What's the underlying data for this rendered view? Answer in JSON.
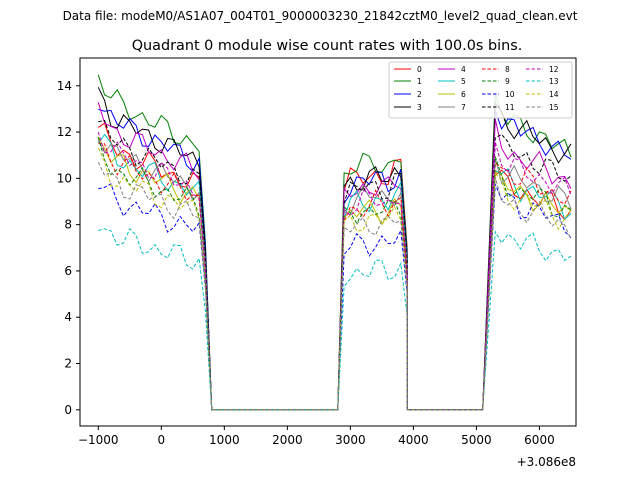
{
  "chart_data": {
    "type": "line",
    "suptitle": "Data file: modeM0/AS1A07_004T01_9000003230_21842cztM0_level2_quad_clean.evt",
    "title": "Quadrant 0 module wise count rates with 100.0s bins.",
    "xlabel": "",
    "ylabel": "",
    "x_offset_label": "+3.086e8",
    "xlim": [
      -1290,
      6580
    ],
    "ylim": [
      -0.7,
      15.2
    ],
    "xticks": [
      -1000,
      0,
      1000,
      2000,
      3000,
      4000,
      5000,
      6000
    ],
    "xtick_labels": [
      "−1000",
      "0",
      "1000",
      "2000",
      "3000",
      "4000",
      "5000",
      "6000"
    ],
    "yticks": [
      0,
      2,
      4,
      6,
      8,
      10,
      12,
      14
    ],
    "ytick_labels": [
      "0",
      "2",
      "4",
      "6",
      "8",
      "10",
      "12",
      "14"
    ],
    "legend": {
      "position": "upper-right",
      "ncol": 4
    },
    "segments": [
      {
        "x_start": -1000,
        "x_end": 600,
        "scale": [
          1.0,
          0.97,
          0.94,
          0.92,
          0.91,
          0.9,
          0.89,
          0.88,
          0.87,
          0.86,
          0.85,
          0.84,
          0.83,
          0.82,
          0.81,
          0.8,
          0.79
        ]
      },
      {
        "x_start": 2900,
        "x_end": 3800,
        "scale": [
          0.95,
          0.98,
          0.99,
          1.0,
          1.0,
          1.01,
          1.0,
          0.99,
          1.02,
          1.03
        ]
      },
      {
        "x_start": 5300,
        "x_end": 6500,
        "scale": [
          1.0,
          0.95,
          0.93,
          0.92,
          0.9,
          0.9,
          0.89,
          0.88,
          0.87,
          0.85,
          0.84,
          0.83,
          0.82
        ]
      }
    ],
    "zero_spans": [
      [
        800,
        2800
      ],
      [
        3900,
        5100
      ]
    ],
    "series": [
      {
        "name": "0",
        "color": "#ff0000",
        "dash": "solid",
        "levels": [
          12.2,
          10.1,
          10.4
        ]
      },
      {
        "name": "1",
        "color": "#008000",
        "dash": "solid",
        "levels": [
          14.4,
          10.6,
          13.5
        ]
      },
      {
        "name": "2",
        "color": "#0000ff",
        "dash": "solid",
        "levels": [
          13.5,
          9.9,
          13.3
        ]
      },
      {
        "name": "3",
        "color": "#000000",
        "dash": "solid",
        "levels": [
          13.6,
          10.0,
          13.3
        ]
      },
      {
        "name": "4",
        "color": "#c000c0",
        "dash": "solid",
        "levels": [
          13.0,
          9.6,
          12.0
        ]
      },
      {
        "name": "5",
        "color": "#00bfbf",
        "dash": "solid",
        "levels": [
          11.8,
          9.0,
          10.6
        ]
      },
      {
        "name": "6",
        "color": "#bfbf00",
        "dash": "solid",
        "levels": [
          11.6,
          8.6,
          10.3
        ]
      },
      {
        "name": "7",
        "color": "#808080",
        "dash": "solid",
        "levels": [
          12.0,
          9.2,
          10.9
        ]
      },
      {
        "name": "8",
        "color": "#ff0000",
        "dash": "dashed",
        "levels": [
          11.6,
          8.8,
          11.0
        ]
      },
      {
        "name": "9",
        "color": "#008000",
        "dash": "dashed",
        "levels": [
          11.2,
          8.6,
          10.4
        ]
      },
      {
        "name": "10",
        "color": "#0000ff",
        "dash": "dashed",
        "levels": [
          9.8,
          7.2,
          9.7
        ]
      },
      {
        "name": "11",
        "color": "#000000",
        "dash": "dashed",
        "levels": [
          12.5,
          9.6,
          12.1
        ]
      },
      {
        "name": "12",
        "color": "#c000c0",
        "dash": "dashed",
        "levels": [
          12.0,
          9.0,
          11.4
        ]
      },
      {
        "name": "13",
        "color": "#00bfbf",
        "dash": "dashed",
        "levels": [
          8.1,
          6.0,
          8.0
        ]
      },
      {
        "name": "14",
        "color": "#bfbf00",
        "dash": "dashed",
        "levels": [
          10.8,
          8.2,
          10.0
        ]
      },
      {
        "name": "15",
        "color": "#808080",
        "dash": "dashed",
        "levels": [
          10.6,
          8.0,
          9.6
        ]
      }
    ]
  }
}
